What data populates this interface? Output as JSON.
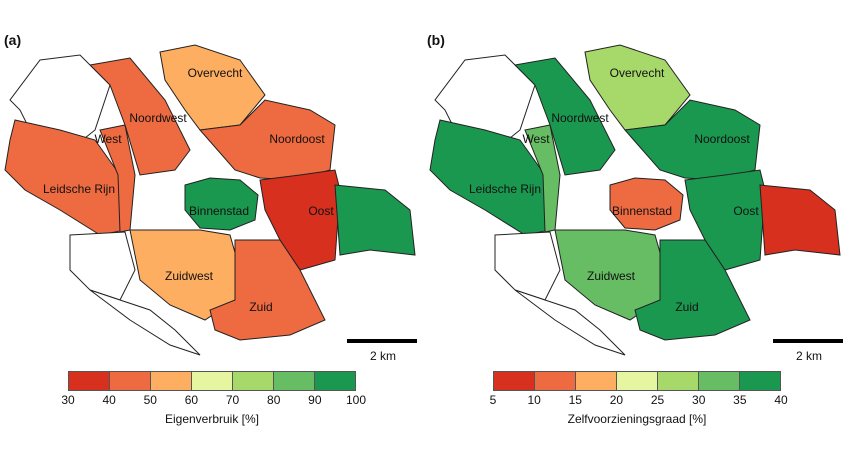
{
  "panels": [
    {
      "id": "a",
      "label": "(a)",
      "districts": {
        "overvecht": "Overvecht",
        "noordwest": "Noordwest",
        "noordoost": "Noordoost",
        "west": "West",
        "leidsche_rijn": "Leidsche Rijn",
        "binnenstad": "Binnenstad",
        "oost": "Oost",
        "zuidwest": "Zuidwest",
        "zuid": "Zuid"
      },
      "scale_label": "2 km",
      "legend": {
        "title": "Eigenverbruik [%]",
        "ticks": [
          "30",
          "40",
          "50",
          "60",
          "70",
          "80",
          "90",
          "100"
        ],
        "colors": [
          "#d7301f",
          "#ee6a40",
          "#fdae61",
          "#e6f5a0",
          "#a6d96a",
          "#66bd63",
          "#1a9850"
        ]
      },
      "district_colors": {
        "west": "#ffffff",
        "leidsche_rijn": "#ee6a40",
        "noordwest": "#ee6a40",
        "overvecht": "#fdae61",
        "noordoost": "#ee6a40",
        "oost_west": "#d7301f",
        "oost_east": "#1a9850",
        "binnenstad": "#1a9850",
        "zuidwest": "#fdae61",
        "zuid": "#ee6a40",
        "west_ring": "#ee6a40"
      }
    },
    {
      "id": "b",
      "label": "(b)",
      "districts": {
        "overvecht": "Overvecht",
        "noordwest": "Noordwest",
        "noordoost": "Noordoost",
        "west": "West",
        "leidsche_rijn": "Leidsche Rijn",
        "binnenstad": "Binnenstad",
        "oost": "Oost",
        "zuidwest": "Zuidwest",
        "zuid": "Zuid"
      },
      "scale_label": "2 km",
      "legend": {
        "title": "Zelfvoorzieningsgraad [%]",
        "ticks": [
          "5",
          "10",
          "15",
          "20",
          "25",
          "30",
          "35",
          "40"
        ],
        "colors": [
          "#d7301f",
          "#ee6a40",
          "#fdae61",
          "#e6f5a0",
          "#a6d96a",
          "#66bd63",
          "#1a9850"
        ]
      },
      "district_colors": {
        "west": "#ffffff",
        "leidsche_rijn": "#1a9850",
        "noordwest": "#1a9850",
        "overvecht": "#a6d96a",
        "noordoost": "#1a9850",
        "oost_west": "#1a9850",
        "oost_east": "#d7301f",
        "binnenstad": "#ee6a40",
        "zuidwest": "#66bd63",
        "zuid": "#1a9850",
        "west_ring": "#66bd63"
      }
    }
  ]
}
